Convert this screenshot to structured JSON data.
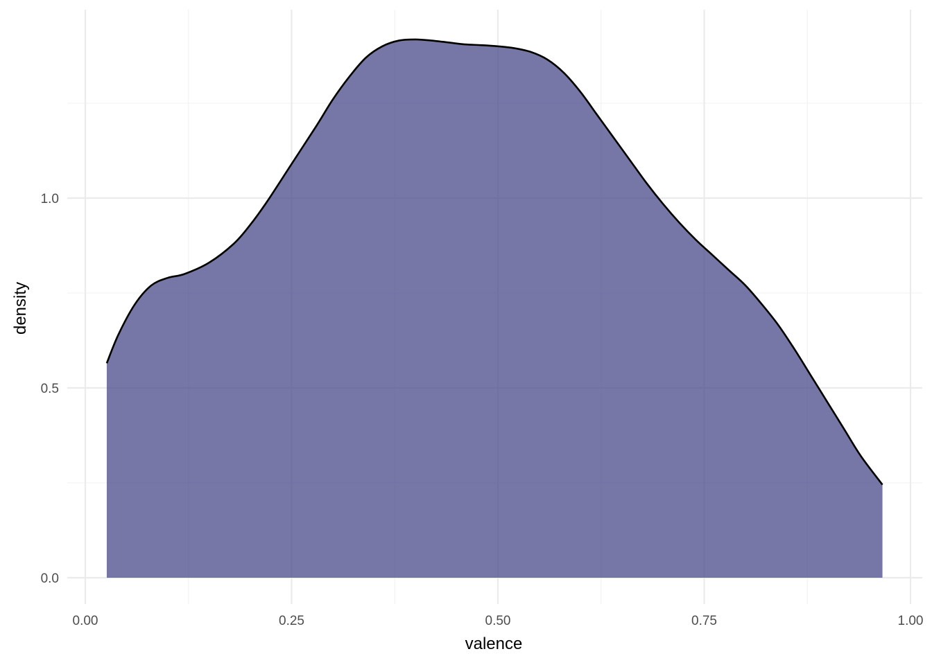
{
  "chart_data": {
    "type": "area",
    "subtype": "density",
    "title": "",
    "xlabel": "valence",
    "ylabel": "density",
    "xlim": [
      0.0,
      1.0
    ],
    "ylim": [
      0.0,
      1.4
    ],
    "x_ticks": [
      {
        "value": 0.0,
        "label": "0.00"
      },
      {
        "value": 0.25,
        "label": "0.25"
      },
      {
        "value": 0.5,
        "label": "0.50"
      },
      {
        "value": 0.75,
        "label": "0.75"
      },
      {
        "value": 1.0,
        "label": "1.00"
      }
    ],
    "x_minor_ticks": [
      0.125,
      0.375,
      0.625,
      0.875
    ],
    "y_ticks": [
      {
        "value": 0.0,
        "label": "0.0"
      },
      {
        "value": 0.5,
        "label": "0.5"
      },
      {
        "value": 1.0,
        "label": "1.0"
      }
    ],
    "y_minor_ticks": [
      0.25,
      0.75,
      1.25
    ],
    "grid": true,
    "fill_color": "#484889",
    "fill_opacity": 0.75,
    "line_color": "#000000",
    "x": [
      0.026,
      0.04,
      0.06,
      0.08,
      0.1,
      0.12,
      0.15,
      0.18,
      0.2,
      0.22,
      0.25,
      0.28,
      0.3,
      0.32,
      0.34,
      0.36,
      0.38,
      0.4,
      0.42,
      0.44,
      0.46,
      0.48,
      0.5,
      0.52,
      0.54,
      0.56,
      0.58,
      0.6,
      0.62,
      0.64,
      0.66,
      0.68,
      0.7,
      0.72,
      0.74,
      0.76,
      0.78,
      0.8,
      0.82,
      0.84,
      0.86,
      0.88,
      0.9,
      0.92,
      0.94,
      0.966
    ],
    "y": [
      0.565,
      0.64,
      0.72,
      0.77,
      0.79,
      0.8,
      0.83,
      0.88,
      0.93,
      0.99,
      1.09,
      1.19,
      1.26,
      1.32,
      1.37,
      1.4,
      1.415,
      1.418,
      1.415,
      1.41,
      1.405,
      1.403,
      1.4,
      1.395,
      1.385,
      1.365,
      1.33,
      1.28,
      1.22,
      1.16,
      1.1,
      1.04,
      0.985,
      0.935,
      0.89,
      0.85,
      0.81,
      0.77,
      0.72,
      0.665,
      0.6,
      0.53,
      0.46,
      0.39,
      0.32,
      0.245
    ]
  }
}
